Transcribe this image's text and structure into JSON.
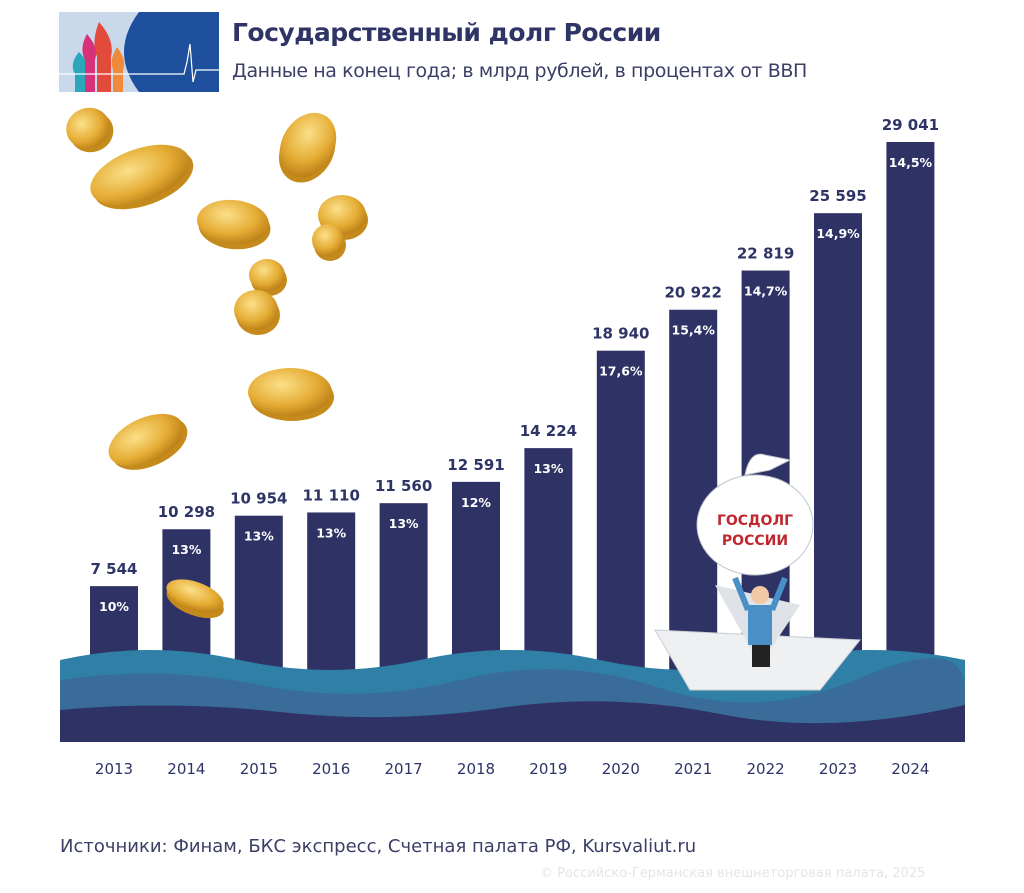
{
  "header": {
    "title": "Государственный долг России",
    "subtitle": "Данные на конец года; в млрд рублей, в процентах от ВВП"
  },
  "chart_data": {
    "type": "bar",
    "title": "Государственный долг России",
    "subtitle": "Данные на конец года; в млрд рублей, в процентах от ВВП",
    "categories": [
      "2013",
      "2014",
      "2015",
      "2016",
      "2017",
      "2018",
      "2019",
      "2020",
      "2021",
      "2022",
      "2023",
      "2024"
    ],
    "values": [
      7544,
      10298,
      10954,
      11110,
      11560,
      12591,
      14224,
      18940,
      20922,
      22819,
      25595,
      29041
    ],
    "value_labels": [
      "7 544",
      "10 298",
      "10 954",
      "11 110",
      "11 560",
      "12 591",
      "14 224",
      "18 940",
      "20 922",
      "22 819",
      "25 595",
      "29 041"
    ],
    "pct_gdp_labels": [
      "10%",
      "13%",
      "13%",
      "13%",
      "13%",
      "12%",
      "13%",
      "17,6%",
      "15,4%",
      "14,7%",
      "14,9%",
      "14,5%"
    ],
    "ylim": [
      0,
      29041
    ],
    "grid": false,
    "bar_color": "#2e3264",
    "label_color": "#2e3466"
  },
  "illustration": {
    "bag_text_line1": "ГОСДОЛГ",
    "bag_text_line2": "РОССИИ",
    "bag_text_color": "#c0262e"
  },
  "footer": {
    "source": "Источники: Финам, БКС экспресс, Счетная палата РФ, Kursvaliut.ru",
    "copyright": "© Российско-Германская внешнеторговая палата, 2025"
  }
}
